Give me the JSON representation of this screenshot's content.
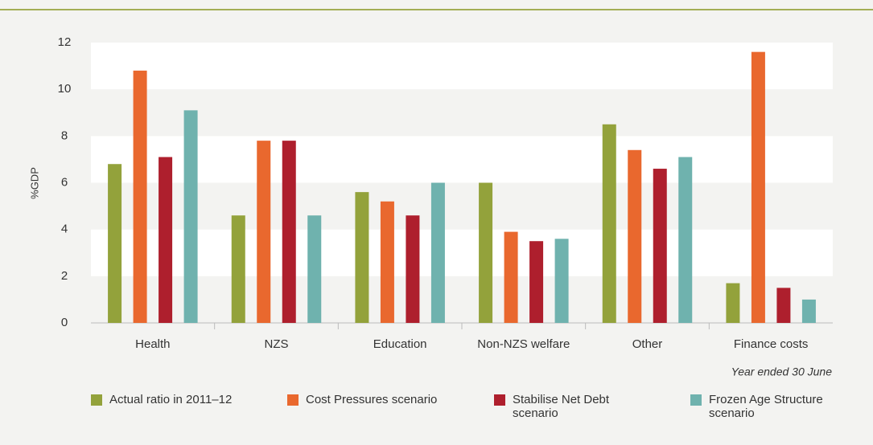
{
  "chart_data": {
    "type": "bar",
    "y_label": "%GDP",
    "x_note": "Year ended 30 June",
    "categories": [
      "Health",
      "NZS",
      "Education",
      "Non-NZS welfare",
      "Other",
      "Finance costs"
    ],
    "series": [
      {
        "name": "Actual ratio in 2011–12",
        "color": "#93a23b",
        "values": [
          6.8,
          4.6,
          5.6,
          6.0,
          8.5,
          1.7
        ]
      },
      {
        "name": "Cost Pressures scenario",
        "color": "#e9682e",
        "values": [
          10.8,
          7.8,
          5.2,
          3.9,
          7.4,
          11.6
        ]
      },
      {
        "name": "Stabilise Net Debt scenario",
        "color": "#ae1f2d",
        "values": [
          7.1,
          7.8,
          4.6,
          3.5,
          6.6,
          1.5
        ]
      },
      {
        "name": "Frozen Age Structure scenario",
        "color": "#6fb2ae",
        "values": [
          9.1,
          4.6,
          6.0,
          3.6,
          7.1,
          1.0
        ]
      }
    ],
    "ylim": [
      0,
      12
    ],
    "yticks": [
      0,
      2,
      4,
      6,
      8,
      10,
      12
    ],
    "grid": "bands"
  }
}
